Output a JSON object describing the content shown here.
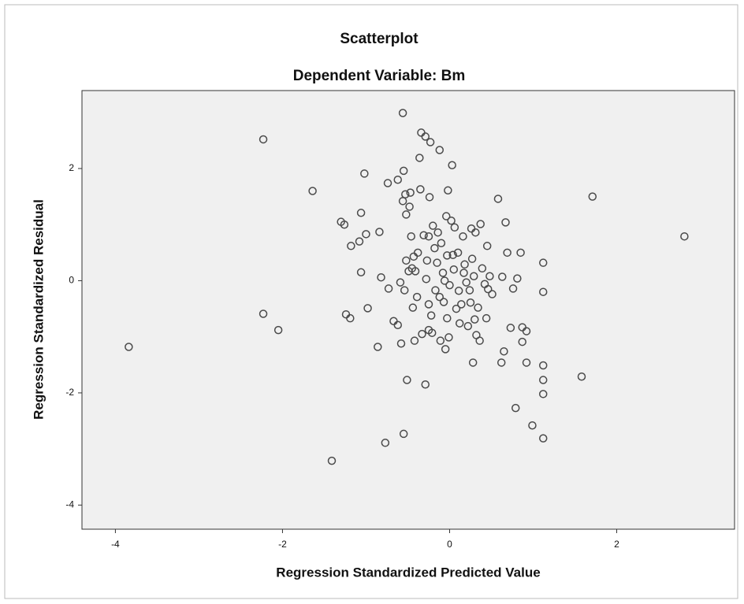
{
  "chart_data": {
    "type": "scatter",
    "title": "Scatterplot",
    "subtitle": "Dependent Variable: Bm",
    "x_label": "Regression Standardized Predicted Value",
    "y_label": "Regression Standardized Residual",
    "color": "#4a4a4a",
    "background": "#f0f0f0",
    "grid": false,
    "xlim": [
      -4.4,
      3.41
    ],
    "ylim": [
      -4.43,
      3.39
    ],
    "xticks": [
      -4,
      -2,
      0,
      2
    ],
    "yticks": [
      -4,
      -2,
      0,
      2
    ],
    "x": [
      -3.84,
      -2.23,
      -2.23,
      -2.05,
      -1.64,
      -1.41,
      -1.3,
      -1.26,
      -1.24,
      -1.19,
      -1.18,
      -1.08,
      -1.06,
      -1.06,
      -1.02,
      -1.0,
      -0.98,
      -0.86,
      -0.84,
      -0.82,
      -0.77,
      -0.74,
      -0.73,
      -0.67,
      -0.62,
      -0.62,
      -0.59,
      -0.58,
      -0.56,
      -0.56,
      -0.55,
      -0.55,
      -0.54,
      -0.53,
      -0.52,
      -0.52,
      -0.51,
      -0.48,
      -0.47,
      -0.49,
      -0.46,
      -0.45,
      -0.44,
      -0.43,
      -0.42,
      -0.41,
      -0.39,
      -0.38,
      -0.36,
      -0.35,
      -0.34,
      -0.33,
      -0.31,
      -0.29,
      -0.29,
      -0.28,
      -0.27,
      -0.25,
      -0.25,
      -0.25,
      -0.24,
      -0.23,
      -0.22,
      -0.21,
      -0.2,
      -0.18,
      -0.17,
      -0.15,
      -0.14,
      -0.12,
      -0.12,
      -0.11,
      -0.1,
      -0.08,
      -0.07,
      -0.06,
      -0.05,
      -0.04,
      -0.03,
      -0.03,
      -0.02,
      -0.01,
      0,
      0.02,
      0.03,
      0.04,
      0.05,
      0.06,
      0.08,
      0.1,
      0.11,
      0.12,
      0.14,
      0.16,
      0.17,
      0.18,
      0.2,
      0.22,
      0.24,
      0.25,
      0.26,
      0.27,
      0.28,
      0.29,
      0.3,
      0.31,
      0.32,
      0.34,
      0.36,
      0.37,
      0.39,
      0.42,
      0.44,
      0.45,
      0.46,
      0.48,
      0.51,
      0.58,
      0.62,
      0.63,
      0.65,
      0.67,
      0.69,
      0.73,
      0.76,
      0.79,
      0.81,
      0.85,
      0.87,
      0.87,
      0.92,
      0.92,
      0.99,
      1.12,
      1.12,
      1.12,
      1.12,
      1.12,
      1.12,
      1.58,
      1.71,
      2.81
    ],
    "values": [
      -1.18,
      2.52,
      -0.59,
      -0.88,
      1.6,
      -3.21,
      1.05,
      1.0,
      -0.6,
      -0.67,
      0.62,
      0.7,
      1.21,
      0.15,
      1.91,
      0.83,
      -0.49,
      -1.18,
      0.87,
      0.06,
      -2.89,
      1.74,
      -0.14,
      -0.72,
      1.8,
      -0.79,
      -0.03,
      -1.12,
      2.99,
      1.42,
      -2.73,
      1.96,
      -0.17,
      1.54,
      0.36,
      1.18,
      -1.77,
      1.32,
      1.57,
      0.17,
      0.79,
      0.22,
      -0.48,
      0.43,
      -1.07,
      0.17,
      -0.29,
      0.5,
      2.19,
      1.63,
      2.64,
      -0.95,
      0.81,
      2.57,
      -1.85,
      0.03,
      0.36,
      -0.42,
      0.79,
      -0.88,
      1.49,
      2.47,
      -0.62,
      -0.93,
      0.98,
      0.58,
      -0.17,
      0.32,
      0.86,
      2.33,
      -0.29,
      -1.07,
      0.67,
      0.14,
      -0.38,
      0.0,
      -1.22,
      1.15,
      0.45,
      -0.67,
      1.61,
      -1.01,
      -0.08,
      1.07,
      2.06,
      0.46,
      0.2,
      0.95,
      -0.5,
      0.5,
      -0.18,
      -0.76,
      -0.42,
      0.79,
      0.14,
      0.29,
      -0.03,
      -0.81,
      -0.17,
      -0.39,
      0.93,
      0.39,
      -1.46,
      0.08,
      -0.69,
      0.86,
      -0.97,
      -0.48,
      -1.07,
      1.01,
      0.22,
      -0.06,
      -0.67,
      0.62,
      -0.15,
      0.08,
      -0.24,
      1.46,
      -1.46,
      0.07,
      -1.26,
      1.04,
      0.5,
      -0.84,
      -0.14,
      -2.27,
      0.04,
      0.5,
      -0.83,
      -1.09,
      -0.9,
      -1.46,
      -2.58,
      0.32,
      -0.2,
      -1.51,
      -1.77,
      -2.02,
      -2.81,
      -1.71,
      1.5,
      0.79
    ]
  }
}
